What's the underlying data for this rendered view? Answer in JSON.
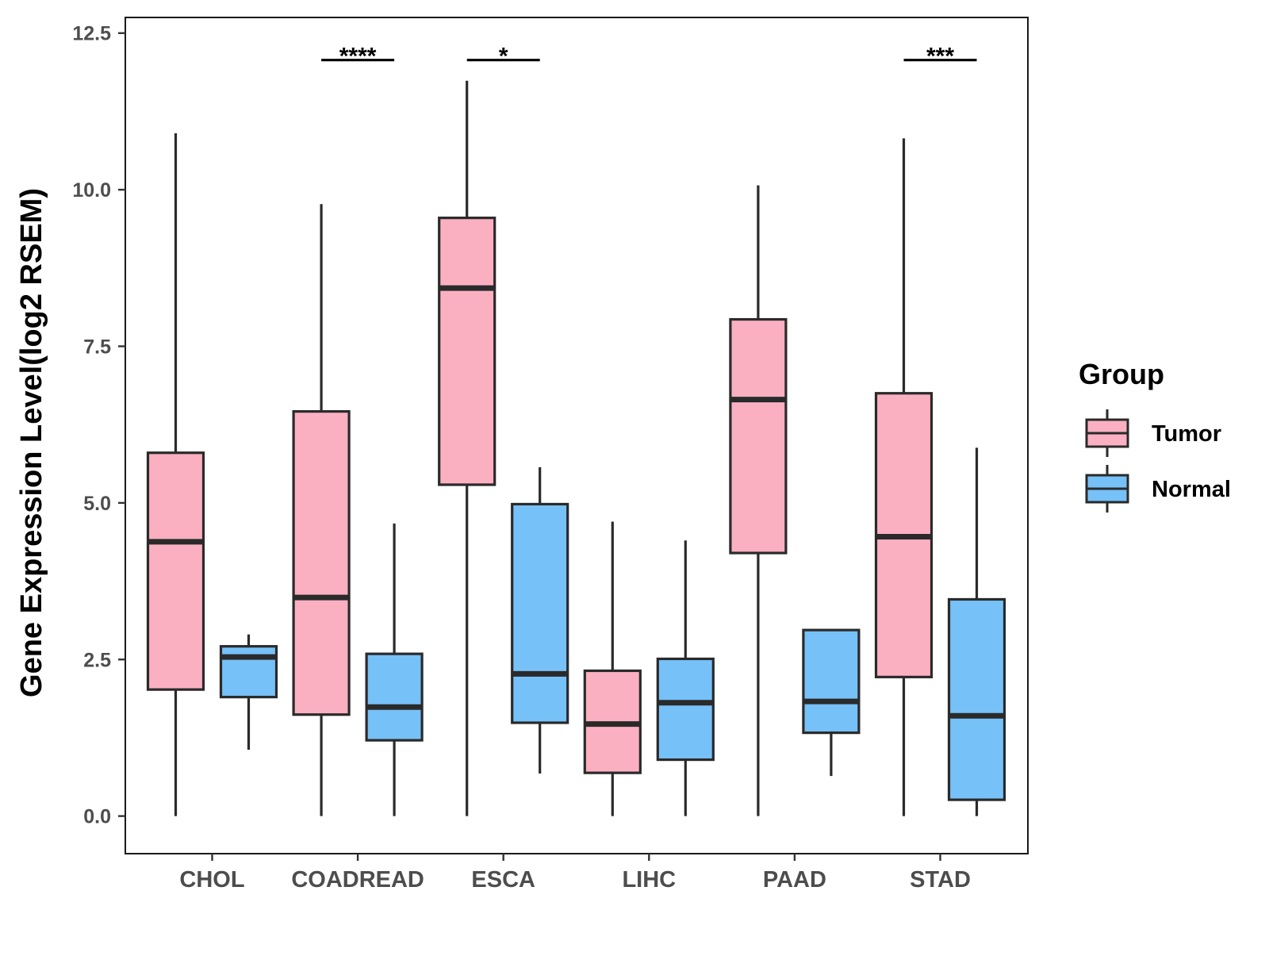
{
  "chart_data": {
    "type": "boxplot",
    "title": "",
    "xlabel": "",
    "ylabel": "Gene Expression Level(log2 RSEM)",
    "ylim": [
      -0.6,
      12.75
    ],
    "yticks": [
      "0.0",
      "2.5",
      "5.0",
      "7.5",
      "10.0",
      "12.5"
    ],
    "ytick_values": [
      0,
      2.5,
      5,
      7.5,
      10,
      12.5
    ],
    "categories": [
      "CHOL",
      "COADREAD",
      "ESCA",
      "LIHC",
      "PAAD",
      "STAD"
    ],
    "legend": {
      "title": "Group",
      "position": "right",
      "entries": [
        "Tumor",
        "Normal"
      ]
    },
    "colors": {
      "Tumor": "#FBB0C1",
      "Normal": "#76C1F8",
      "stroke": "#2a2a2a"
    },
    "series": [
      {
        "name": "Tumor",
        "boxes": [
          {
            "category": "CHOL",
            "whisker_low": 0.0,
            "q1": 2.02,
            "median": 4.38,
            "q3": 5.8,
            "whisker_high": 10.9
          },
          {
            "category": "COADREAD",
            "whisker_low": 0.0,
            "q1": 1.62,
            "median": 3.49,
            "q3": 6.46,
            "whisker_high": 9.77
          },
          {
            "category": "ESCA",
            "whisker_low": 0.0,
            "q1": 5.29,
            "median": 8.43,
            "q3": 9.55,
            "whisker_high": 11.74
          },
          {
            "category": "LIHC",
            "whisker_low": 0.0,
            "q1": 0.69,
            "median": 1.47,
            "q3": 2.32,
            "whisker_high": 4.7
          },
          {
            "category": "PAAD",
            "whisker_low": 0.0,
            "q1": 4.2,
            "median": 6.65,
            "q3": 7.93,
            "whisker_high": 10.07
          },
          {
            "category": "STAD",
            "whisker_low": 0.0,
            "q1": 2.22,
            "median": 4.46,
            "q3": 6.75,
            "whisker_high": 10.82
          }
        ]
      },
      {
        "name": "Normal",
        "boxes": [
          {
            "category": "CHOL",
            "whisker_low": 1.06,
            "q1": 1.9,
            "median": 2.54,
            "q3": 2.71,
            "whisker_high": 2.9
          },
          {
            "category": "COADREAD",
            "whisker_low": 0.0,
            "q1": 1.21,
            "median": 1.74,
            "q3": 2.59,
            "whisker_high": 4.67
          },
          {
            "category": "ESCA",
            "whisker_low": 0.68,
            "q1": 1.49,
            "median": 2.27,
            "q3": 4.98,
            "whisker_high": 5.57
          },
          {
            "category": "LIHC",
            "whisker_low": 0.0,
            "q1": 0.9,
            "median": 1.81,
            "q3": 2.51,
            "whisker_high": 4.4
          },
          {
            "category": "PAAD",
            "whisker_low": 0.64,
            "q1": 1.33,
            "median": 1.83,
            "q3": 2.97,
            "whisker_high": 2.97
          },
          {
            "category": "STAD",
            "whisker_low": 0.0,
            "q1": 0.26,
            "median": 1.6,
            "q3": 3.46,
            "whisker_high": 5.88
          }
        ]
      }
    ],
    "annotations": [
      {
        "category": "COADREAD",
        "label": "****",
        "y": 12.07
      },
      {
        "category": "ESCA",
        "label": "*",
        "y": 12.07
      },
      {
        "category": "STAD",
        "label": "***",
        "y": 12.07
      }
    ]
  }
}
